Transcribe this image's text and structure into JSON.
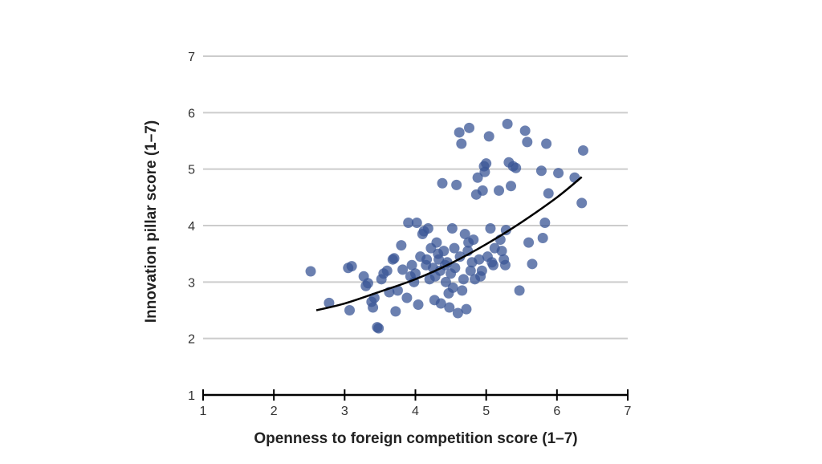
{
  "chart_data": {
    "type": "scatter",
    "title": "",
    "xlabel": "Openness to foreign competition score (1–7)",
    "ylabel": "Innovation pillar score (1–7)",
    "xlim": [
      1,
      7
    ],
    "ylim": [
      1,
      7
    ],
    "x_ticks": [
      "1",
      "2",
      "3",
      "4",
      "5",
      "6",
      "7"
    ],
    "y_ticks": [
      "1",
      "2",
      "3",
      "4",
      "5",
      "6",
      "7"
    ],
    "grid": "horizontal",
    "colors": {
      "points": "#3a5695",
      "trend": "#000000",
      "grid": "#cccccc",
      "axis": "#000000"
    },
    "series": [
      {
        "points": [
          [
            2.52,
            3.19
          ],
          [
            2.78,
            2.63
          ],
          [
            3.05,
            3.25
          ],
          [
            3.1,
            3.28
          ],
          [
            3.07,
            2.5
          ],
          [
            3.27,
            3.1
          ],
          [
            3.3,
            2.93
          ],
          [
            3.33,
            2.98
          ],
          [
            3.38,
            2.65
          ],
          [
            3.4,
            2.55
          ],
          [
            3.42,
            2.72
          ],
          [
            3.46,
            2.2
          ],
          [
            3.48,
            2.18
          ],
          [
            3.52,
            3.05
          ],
          [
            3.55,
            3.15
          ],
          [
            3.6,
            3.2
          ],
          [
            3.63,
            2.82
          ],
          [
            3.68,
            3.4
          ],
          [
            3.7,
            3.42
          ],
          [
            3.72,
            2.48
          ],
          [
            3.75,
            2.85
          ],
          [
            3.8,
            3.65
          ],
          [
            3.82,
            3.22
          ],
          [
            3.88,
            2.72
          ],
          [
            3.9,
            4.05
          ],
          [
            3.93,
            3.1
          ],
          [
            3.95,
            3.3
          ],
          [
            3.98,
            3.0
          ],
          [
            4.0,
            3.15
          ],
          [
            4.02,
            4.05
          ],
          [
            4.04,
            2.6
          ],
          [
            4.07,
            3.45
          ],
          [
            4.1,
            3.85
          ],
          [
            4.12,
            3.9
          ],
          [
            4.15,
            3.3
          ],
          [
            4.16,
            3.4
          ],
          [
            4.18,
            3.95
          ],
          [
            4.2,
            3.05
          ],
          [
            4.22,
            3.6
          ],
          [
            4.25,
            3.25
          ],
          [
            4.27,
            2.68
          ],
          [
            4.28,
            3.1
          ],
          [
            4.3,
            3.7
          ],
          [
            4.32,
            3.5
          ],
          [
            4.33,
            3.4
          ],
          [
            4.35,
            3.2
          ],
          [
            4.36,
            2.62
          ],
          [
            4.38,
            4.75
          ],
          [
            4.4,
            3.55
          ],
          [
            4.42,
            3.3
          ],
          [
            4.43,
            3.0
          ],
          [
            4.45,
            3.35
          ],
          [
            4.47,
            2.8
          ],
          [
            4.48,
            2.55
          ],
          [
            4.5,
            3.15
          ],
          [
            4.52,
            3.95
          ],
          [
            4.53,
            2.9
          ],
          [
            4.55,
            3.6
          ],
          [
            4.56,
            3.25
          ],
          [
            4.58,
            4.72
          ],
          [
            4.6,
            2.45
          ],
          [
            4.62,
            5.65
          ],
          [
            4.63,
            3.45
          ],
          [
            4.65,
            5.45
          ],
          [
            4.66,
            2.85
          ],
          [
            4.68,
            3.05
          ],
          [
            4.7,
            3.85
          ],
          [
            4.72,
            2.52
          ],
          [
            4.74,
            3.55
          ],
          [
            4.75,
            3.7
          ],
          [
            4.76,
            5.73
          ],
          [
            4.78,
            3.2
          ],
          [
            4.8,
            3.35
          ],
          [
            4.82,
            3.75
          ],
          [
            4.84,
            3.05
          ],
          [
            4.86,
            4.55
          ],
          [
            4.88,
            4.85
          ],
          [
            4.9,
            3.4
          ],
          [
            4.92,
            3.1
          ],
          [
            4.94,
            3.2
          ],
          [
            4.95,
            4.62
          ],
          [
            4.97,
            5.05
          ],
          [
            4.98,
            4.95
          ],
          [
            5.0,
            5.1
          ],
          [
            5.02,
            3.45
          ],
          [
            5.04,
            5.58
          ],
          [
            5.06,
            3.95
          ],
          [
            5.08,
            3.35
          ],
          [
            5.1,
            3.3
          ],
          [
            5.12,
            3.6
          ],
          [
            5.18,
            4.62
          ],
          [
            5.2,
            3.75
          ],
          [
            5.22,
            3.55
          ],
          [
            5.25,
            3.4
          ],
          [
            5.27,
            3.3
          ],
          [
            5.28,
            3.92
          ],
          [
            5.3,
            5.8
          ],
          [
            5.32,
            5.12
          ],
          [
            5.35,
            4.7
          ],
          [
            5.38,
            5.05
          ],
          [
            5.42,
            5.02
          ],
          [
            5.47,
            2.85
          ],
          [
            5.55,
            5.68
          ],
          [
            5.58,
            5.48
          ],
          [
            5.6,
            3.7
          ],
          [
            5.65,
            3.32
          ],
          [
            5.78,
            4.97
          ],
          [
            5.8,
            3.78
          ],
          [
            5.83,
            4.05
          ],
          [
            5.85,
            5.45
          ],
          [
            5.88,
            4.57
          ],
          [
            6.02,
            4.93
          ],
          [
            6.25,
            4.85
          ],
          [
            6.35,
            4.4
          ],
          [
            6.37,
            5.33
          ]
        ]
      }
    ],
    "trendline": {
      "type": "quadratic",
      "points": [
        [
          2.6,
          2.5
        ],
        [
          3.0,
          2.62
        ],
        [
          3.5,
          2.83
        ],
        [
          4.0,
          3.05
        ],
        [
          4.5,
          3.33
        ],
        [
          5.0,
          3.67
        ],
        [
          5.5,
          4.06
        ],
        [
          6.0,
          4.5
        ],
        [
          6.35,
          4.86
        ]
      ]
    }
  }
}
